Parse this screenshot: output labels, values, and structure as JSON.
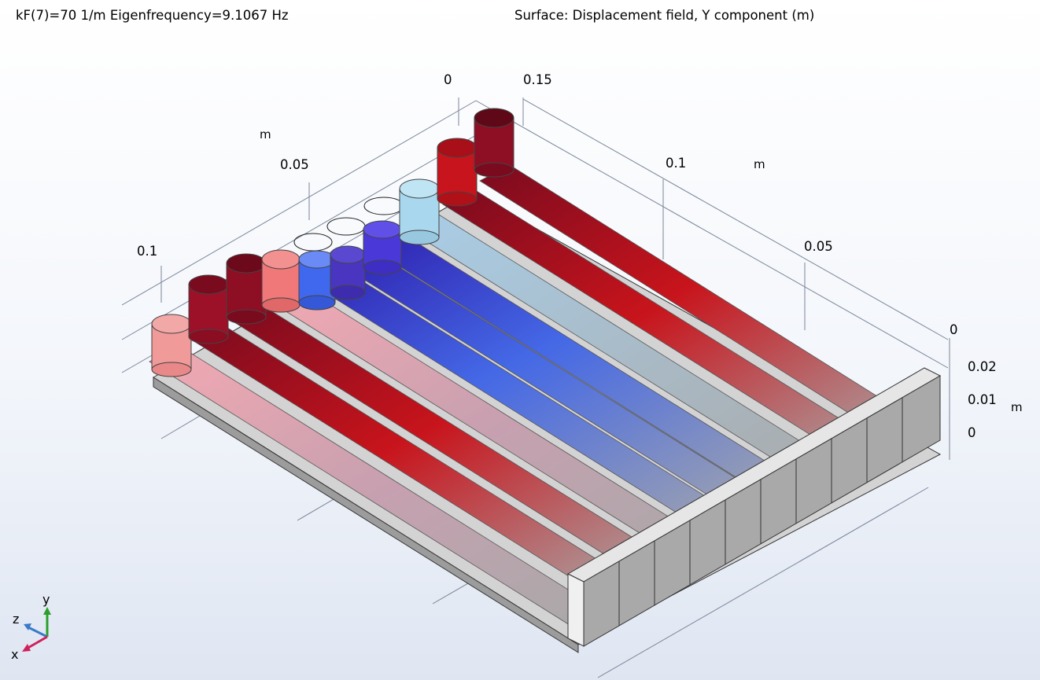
{
  "header": {
    "left": "kF(7)=70 1/m Eigenfrequency=9.1067 Hz",
    "right": "Surface: Displacement field, Y component (m)"
  },
  "axes": {
    "back_axis_ticks": [
      "0",
      "0.05",
      "0.1"
    ],
    "back_axis_unit": "m",
    "right_axis_ticks": [
      "0.15",
      "0.1",
      "0.05",
      "0"
    ],
    "right_axis_unit": "m",
    "vertical_axis_ticks": [
      "0.02",
      "0.01",
      "0"
    ],
    "vertical_axis_unit": "m"
  },
  "triad": {
    "y": "y",
    "z": "z",
    "x": "x"
  },
  "colors": {
    "dark_red": "#7a0b1f",
    "red": "#c8141c",
    "pink": "#f08c8c",
    "blue": "#3f64f0",
    "violet": "#4a35c8",
    "light_blue": "#a9d8ee",
    "gray": "#a9a9a9"
  }
}
